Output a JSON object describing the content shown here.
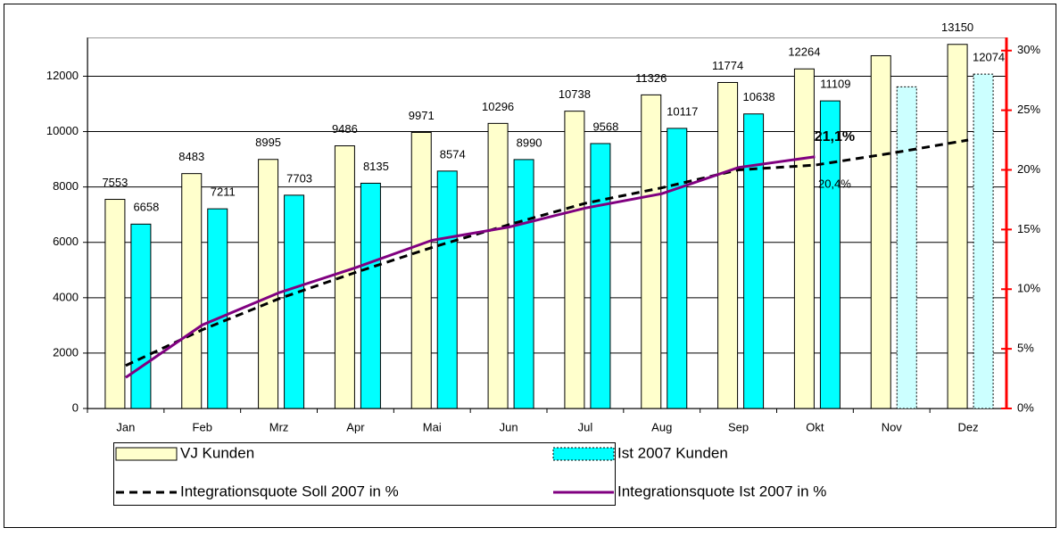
{
  "chart_data": {
    "type": "bar-line",
    "categories": [
      "Jan",
      "Feb",
      "Mrz",
      "Apr",
      "Mai",
      "Jun",
      "Jul",
      "Aug",
      "Sep",
      "Okt",
      "Nov",
      "Dez"
    ],
    "series": [
      {
        "name": "VJ Kunden",
        "type": "bar",
        "color": "#ffffcc",
        "values": [
          7553,
          8483,
          8995,
          9486,
          9971,
          10296,
          10738,
          11326,
          11774,
          12264,
          12740,
          13150
        ],
        "value_labels": [
          "7553",
          "8483",
          "8995",
          "9486",
          "9971",
          "10296",
          "10738",
          "11326",
          "11774",
          "12264",
          null,
          "13150"
        ]
      },
      {
        "name": "Ist 2007 Kunden",
        "type": "bar",
        "color": "#00ffff",
        "point_colors": [
          "#00ffff",
          "#00ffff",
          "#00ffff",
          "#00ffff",
          "#00ffff",
          "#00ffff",
          "#00ffff",
          "#00ffff",
          "#00ffff",
          "#00ffff",
          "#ccffff",
          "#ccffff"
        ],
        "border": [
          "solid",
          "solid",
          "solid",
          "solid",
          "solid",
          "solid",
          "solid",
          "solid",
          "solid",
          "solid",
          "dotted",
          "dotted"
        ],
        "values": [
          6658,
          7211,
          7703,
          8135,
          8574,
          8990,
          9568,
          10117,
          10638,
          11109,
          11615,
          12074
        ],
        "value_labels": [
          "6658",
          "7211",
          "7703",
          "8135",
          "8574",
          "8990",
          "9568",
          "10117",
          "10638",
          "11109",
          null,
          "12074"
        ]
      },
      {
        "name": "Integrationsquote Soll 2007 in %",
        "type": "line",
        "axis": "y2",
        "color": "#000000",
        "dash": "dashed",
        "values": [
          3.6,
          6.6,
          9.2,
          11.4,
          13.5,
          15.4,
          17.2,
          18.5,
          20.0,
          20.4,
          21.4,
          22.5
        ]
      },
      {
        "name": "Integrationsquote Ist 2007 in %",
        "type": "line",
        "axis": "y2",
        "color": "#800080",
        "dash": "solid",
        "values": [
          2.6,
          7.0,
          9.7,
          11.8,
          14.1,
          15.2,
          16.8,
          18.0,
          20.2,
          21.1,
          null,
          null
        ]
      }
    ],
    "annotations": [
      {
        "text": "21,1%",
        "series": 3,
        "index": 9,
        "bold": true
      },
      {
        "text": "20,4%",
        "series": 2,
        "index": 9,
        "bold": false
      }
    ],
    "ylim": [
      0,
      13400
    ],
    "yticks": [
      0,
      2000,
      4000,
      6000,
      8000,
      10000,
      12000
    ],
    "y2lim": [
      0,
      31.1
    ],
    "y2ticks": [
      {
        "value": 0,
        "label": "0%"
      },
      {
        "value": 5,
        "label": "5%"
      },
      {
        "value": 10,
        "label": "10%"
      },
      {
        "value": 15,
        "label": "15%"
      },
      {
        "value": 20,
        "label": "20%"
      },
      {
        "value": 25,
        "label": "25%"
      },
      {
        "value": 30,
        "label": "30%"
      }
    ],
    "y2_axis_color": "#ff0000",
    "grid": true
  }
}
